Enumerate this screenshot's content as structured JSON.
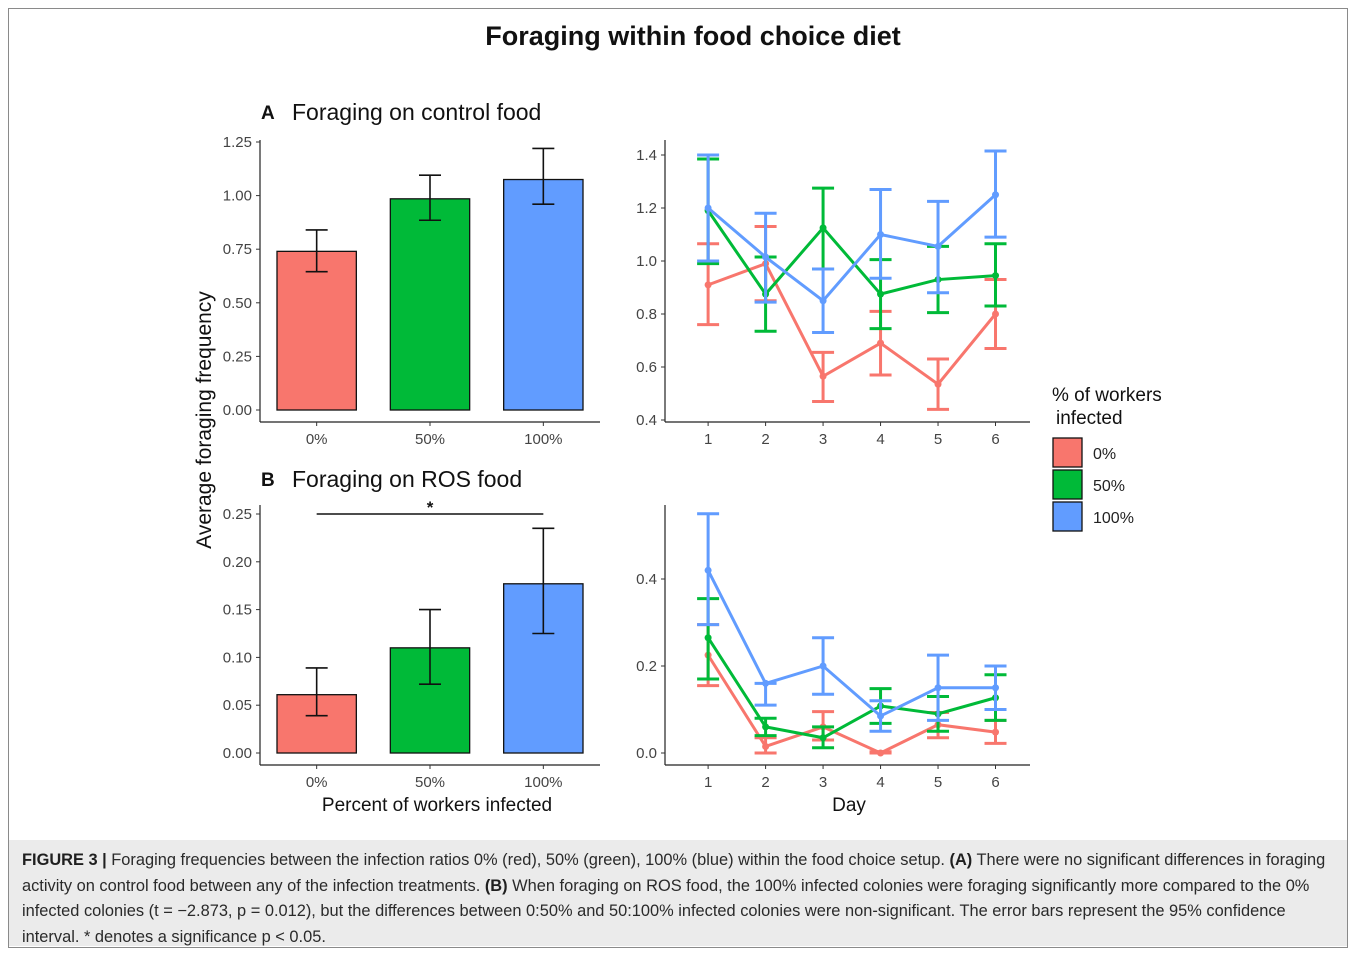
{
  "figure": {
    "main_title": "Foraging within food choice diet",
    "shared_ylabel": "Average foraging frequency",
    "legend": {
      "title_line1": "% of workers",
      "title_line2": "infected",
      "items": [
        {
          "label": "0%",
          "color": "#F8766D"
        },
        {
          "label": "50%",
          "color": "#00BA38"
        },
        {
          "label": "100%",
          "color": "#619CFF"
        }
      ]
    }
  },
  "caption": {
    "label": "FIGURE 3 |",
    "text1": " Foraging frequencies between the infection ratios 0% (red), 50% (green), 100% (blue) within the food choice setup. ",
    "a_label": "(A)",
    "text2": " There were no significant differences in foraging activity on control food between any of the infection treatments. ",
    "b_label": "(B)",
    "text3": " When foraging on ROS food, the 100% infected colonies were foraging significantly more compared to the 0% infected colonies (t = −2.873, p = 0.012), but the differences between 0:50% and 50:100% infected colonies were non-significant. The error bars represent the 95% confidence interval. * denotes a significance p < 0.05."
  },
  "chart_data": [
    {
      "id": "A-bar",
      "type": "bar",
      "panel_letter": "A",
      "title": "Foraging on control food",
      "categories": [
        "0%",
        "50%",
        "100%"
      ],
      "colors": [
        "#F8766D",
        "#00BA38",
        "#619CFF"
      ],
      "values": [
        0.74,
        0.985,
        1.075
      ],
      "err_low": [
        0.645,
        0.885,
        0.96
      ],
      "err_high": [
        0.84,
        1.095,
        1.22
      ],
      "ylim": [
        0,
        1.25
      ],
      "yticks": [
        0,
        0.25,
        0.5,
        0.75,
        1.0,
        1.25
      ],
      "ytick_labels": [
        "0.00",
        "0.25",
        "0.50",
        "0.75",
        "1.00",
        "1.25"
      ]
    },
    {
      "id": "A-line",
      "type": "line",
      "x": [
        1,
        2,
        3,
        4,
        5,
        6
      ],
      "xlim": [
        0.25,
        6.6
      ],
      "ylim": [
        0.4,
        1.44
      ],
      "yticks": [
        0.4,
        0.6,
        0.8,
        1.0,
        1.2,
        1.4
      ],
      "ytick_labels": [
        "0.4",
        "0.6",
        "0.8",
        "1.0",
        "1.2",
        "1.4"
      ],
      "series": [
        {
          "name": "0%",
          "color": "#F8766D",
          "values": [
            0.91,
            0.99,
            0.565,
            0.69,
            0.535,
            0.8
          ],
          "low": [
            0.76,
            0.85,
            0.47,
            0.57,
            0.44,
            0.67
          ],
          "high": [
            1.065,
            1.13,
            0.655,
            0.81,
            0.63,
            0.93
          ]
        },
        {
          "name": "50%",
          "color": "#00BA38",
          "values": [
            1.19,
            0.875,
            1.125,
            0.875,
            0.93,
            0.945
          ],
          "low": [
            0.99,
            0.735,
            0.97,
            0.745,
            0.805,
            0.83
          ],
          "high": [
            1.385,
            1.015,
            1.275,
            1.005,
            1.055,
            1.065
          ]
        },
        {
          "name": "100%",
          "color": "#619CFF",
          "values": [
            1.2,
            1.015,
            0.85,
            1.1,
            1.055,
            1.25
          ],
          "low": [
            1.0,
            0.845,
            0.73,
            0.935,
            0.88,
            1.09
          ],
          "high": [
            1.4,
            1.18,
            0.97,
            1.27,
            1.225,
            1.415
          ]
        }
      ]
    },
    {
      "id": "B-bar",
      "type": "bar",
      "panel_letter": "B",
      "title": "Foraging on ROS food",
      "xlabel": "Percent of workers infected",
      "categories": [
        "0%",
        "50%",
        "100%"
      ],
      "colors": [
        "#F8766D",
        "#00BA38",
        "#619CFF"
      ],
      "values": [
        0.061,
        0.11,
        0.177
      ],
      "err_low": [
        0.039,
        0.072,
        0.125
      ],
      "err_high": [
        0.089,
        0.15,
        0.235
      ],
      "ylim": [
        0,
        0.25
      ],
      "yticks": [
        0,
        0.05,
        0.1,
        0.15,
        0.2,
        0.25
      ],
      "ytick_labels": [
        "0.00",
        "0.05",
        "0.10",
        "0.15",
        "0.20",
        "0.25"
      ],
      "significance": {
        "from": "0%",
        "to": "100%",
        "label": "*",
        "y": 0.25
      }
    },
    {
      "id": "B-line",
      "type": "line",
      "xlabel": "Day",
      "x": [
        1,
        2,
        3,
        4,
        5,
        6
      ],
      "xlim": [
        0.25,
        6.6
      ],
      "ylim": [
        0,
        0.57
      ],
      "yticks": [
        0,
        0.2,
        0.4
      ],
      "ytick_labels": [
        "0.0",
        "0.2",
        "0.4"
      ],
      "series": [
        {
          "name": "0%",
          "color": "#F8766D",
          "values": [
            0.225,
            0.015,
            0.06,
            0.0,
            0.065,
            0.048
          ],
          "low": [
            0.155,
            0.0,
            0.03,
            0.0,
            0.035,
            0.022
          ],
          "high": [
            0.295,
            0.035,
            0.095,
            0.003,
            0.093,
            0.075
          ]
        },
        {
          "name": "50%",
          "color": "#00BA38",
          "values": [
            0.265,
            0.06,
            0.035,
            0.108,
            0.09,
            0.127
          ],
          "low": [
            0.17,
            0.04,
            0.012,
            0.068,
            0.05,
            0.075
          ],
          "high": [
            0.355,
            0.08,
            0.06,
            0.148,
            0.13,
            0.18
          ]
        },
        {
          "name": "100%",
          "color": "#619CFF",
          "values": [
            0.42,
            0.16,
            0.2,
            0.085,
            0.15,
            0.15
          ],
          "low": [
            0.295,
            0.11,
            0.135,
            0.05,
            0.075,
            0.1
          ],
          "high": [
            0.55,
            0.16,
            0.265,
            0.12,
            0.225,
            0.2
          ]
        }
      ]
    }
  ]
}
